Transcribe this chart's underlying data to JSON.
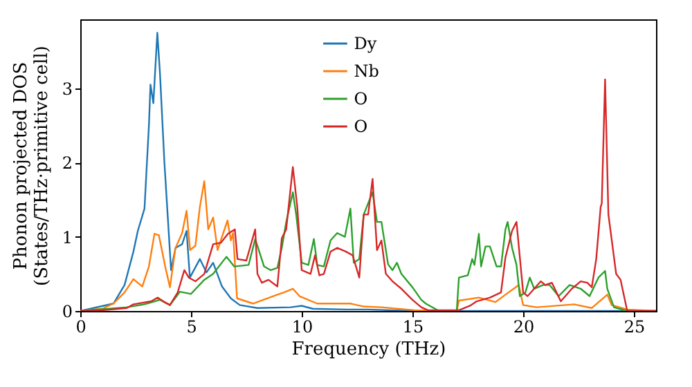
{
  "chart_data": {
    "type": "line",
    "xlabel": "Frequency (THz)",
    "ylabel": "Phonon projected DOS\n(States/THz·primitive cell)",
    "xlim": [
      0,
      26
    ],
    "ylim": [
      0,
      3.93
    ],
    "xticks": [
      0,
      5,
      10,
      15,
      20,
      25
    ],
    "yticks": [
      0,
      1,
      2,
      3
    ],
    "legend": "top",
    "grid": false,
    "line_style": "solid",
    "marker": "none",
    "series": [
      {
        "name": "Dy",
        "color": "#1f77b4",
        "x": [
          0,
          1.5,
          2,
          2.4,
          2.6,
          2.9,
          3.1,
          3.17,
          3.3,
          3.48,
          3.6,
          3.8,
          4.1,
          4.3,
          4.6,
          4.8,
          4.95,
          5.4,
          5.7,
          6.0,
          6.4,
          6.8,
          7.2,
          8,
          9.5,
          10,
          10.5,
          12,
          13,
          15,
          26
        ],
        "values": [
          0,
          0.1,
          0.35,
          0.8,
          1.08,
          1.38,
          2.5,
          3.05,
          2.8,
          3.75,
          3.2,
          2.0,
          0.55,
          0.85,
          0.9,
          1.08,
          0.45,
          0.7,
          0.52,
          0.65,
          0.33,
          0.17,
          0.08,
          0.04,
          0.05,
          0.07,
          0.03,
          0.02,
          0.02,
          0,
          0
        ]
      },
      {
        "name": "Nb",
        "color": "#ff7f0e",
        "x": [
          0,
          1,
          1.5,
          2,
          2.4,
          2.8,
          3.1,
          3.35,
          3.55,
          3.85,
          4.05,
          4.3,
          4.6,
          4.8,
          4.96,
          5.2,
          5.4,
          5.6,
          5.78,
          6.0,
          6.2,
          6.4,
          6.65,
          6.8,
          6.9,
          7.08,
          7.8,
          8.9,
          9.2,
          9.6,
          9.9,
          10.7,
          12.2,
          12.8,
          13.6,
          15.1,
          17.0,
          17.1,
          18.0,
          18.75,
          19.2,
          19.8,
          20.0,
          20.6,
          22.3,
          23.1,
          23.8,
          24.0,
          24.7,
          26
        ],
        "values": [
          0,
          0.03,
          0.1,
          0.25,
          0.43,
          0.33,
          0.6,
          1.04,
          1.02,
          0.58,
          0.32,
          0.85,
          1.05,
          1.35,
          0.82,
          0.88,
          1.4,
          1.75,
          1.1,
          1.26,
          0.82,
          1.0,
          1.22,
          0.95,
          1.05,
          0.17,
          0.1,
          0.22,
          0.25,
          0.3,
          0.2,
          0.1,
          0.1,
          0.06,
          0.05,
          0.01,
          0,
          0.14,
          0.18,
          0.12,
          0.22,
          0.35,
          0.08,
          0.05,
          0.09,
          0.04,
          0.22,
          0.08,
          0.02,
          0
        ]
      },
      {
        "name": "O",
        "color": "#2ca02c",
        "x": [
          0,
          2.1,
          2.9,
          3.6,
          4.05,
          4.5,
          5.0,
          5.6,
          6.0,
          6.6,
          6.95,
          7.6,
          7.9,
          8.3,
          8.6,
          8.9,
          9.1,
          9.3,
          9.6,
          9.75,
          10.0,
          10.3,
          10.55,
          10.7,
          11.0,
          11.3,
          11.6,
          11.95,
          12.2,
          12.35,
          12.6,
          12.8,
          13.2,
          13.4,
          13.6,
          13.9,
          14.1,
          14.3,
          14.5,
          15.0,
          15.4,
          15.6,
          16.2,
          17.0,
          17.1,
          17.5,
          17.7,
          17.8,
          18.0,
          18.1,
          18.3,
          18.5,
          18.8,
          19.0,
          19.2,
          19.3,
          19.5,
          19.7,
          19.85,
          20.1,
          20.3,
          20.5,
          20.9,
          21.2,
          21.6,
          22.1,
          22.6,
          23.0,
          23.4,
          23.7,
          23.8,
          24.1,
          24.7,
          26
        ],
        "values": [
          0,
          0.05,
          0.09,
          0.15,
          0.08,
          0.26,
          0.23,
          0.42,
          0.5,
          0.73,
          0.6,
          0.62,
          0.97,
          0.6,
          0.55,
          0.58,
          0.85,
          1.2,
          1.6,
          1.3,
          0.65,
          0.62,
          0.97,
          0.62,
          0.6,
          0.95,
          1.05,
          1.0,
          1.38,
          0.65,
          0.7,
          1.3,
          1.6,
          1.2,
          1.2,
          0.63,
          0.55,
          0.65,
          0.5,
          0.32,
          0.15,
          0.1,
          0,
          0,
          0.45,
          0.48,
          0.7,
          0.62,
          1.04,
          0.6,
          0.87,
          0.87,
          0.6,
          0.6,
          1.1,
          1.2,
          0.85,
          0.62,
          0.2,
          0.25,
          0.45,
          0.3,
          0.35,
          0.35,
          0.2,
          0.35,
          0.3,
          0.2,
          0.45,
          0.54,
          0.3,
          0.05,
          0,
          0
        ]
      },
      {
        "name": "O",
        "color": "#d62728",
        "x": [
          0,
          1,
          2.1,
          2.4,
          3.2,
          3.5,
          3.8,
          4.05,
          4.4,
          4.7,
          4.9,
          5.2,
          5.6,
          6.0,
          6.35,
          6.67,
          6.98,
          7.1,
          7.5,
          7.9,
          8.0,
          8.2,
          8.5,
          8.9,
          9.1,
          9.3,
          9.6,
          9.8,
          10.0,
          10.4,
          10.6,
          10.8,
          11.0,
          11.3,
          11.6,
          12.0,
          12.3,
          12.6,
          12.8,
          13.0,
          13.2,
          13.4,
          13.6,
          13.8,
          14.1,
          14.5,
          15.0,
          15.4,
          15.7,
          17.1,
          17.6,
          17.9,
          18.5,
          19.0,
          19.2,
          19.5,
          19.7,
          20.0,
          20.2,
          20.5,
          20.8,
          21.0,
          21.3,
          21.7,
          22.2,
          22.6,
          22.9,
          23.1,
          23.3,
          23.5,
          23.55,
          23.7,
          23.85,
          24.2,
          24.4,
          24.7,
          26
        ],
        "values": [
          0,
          0.01,
          0.04,
          0.09,
          0.13,
          0.18,
          0.12,
          0.08,
          0.25,
          0.55,
          0.45,
          0.4,
          0.5,
          0.9,
          0.92,
          1.04,
          1.1,
          0.7,
          0.68,
          1.1,
          0.5,
          0.38,
          0.42,
          0.33,
          0.98,
          1.1,
          1.94,
          1.4,
          0.55,
          0.5,
          0.75,
          0.48,
          0.5,
          0.8,
          0.85,
          0.8,
          0.75,
          0.45,
          1.3,
          1.3,
          1.78,
          0.82,
          0.95,
          0.5,
          0.4,
          0.3,
          0.15,
          0.05,
          0.01,
          0.01,
          0.07,
          0.13,
          0.18,
          0.25,
          0.72,
          1.08,
          1.2,
          0.25,
          0.2,
          0.3,
          0.4,
          0.35,
          0.38,
          0.13,
          0.3,
          0.4,
          0.38,
          0.32,
          0.7,
          1.4,
          1.45,
          3.12,
          1.3,
          0.5,
          0.42,
          0,
          0
        ]
      }
    ]
  }
}
